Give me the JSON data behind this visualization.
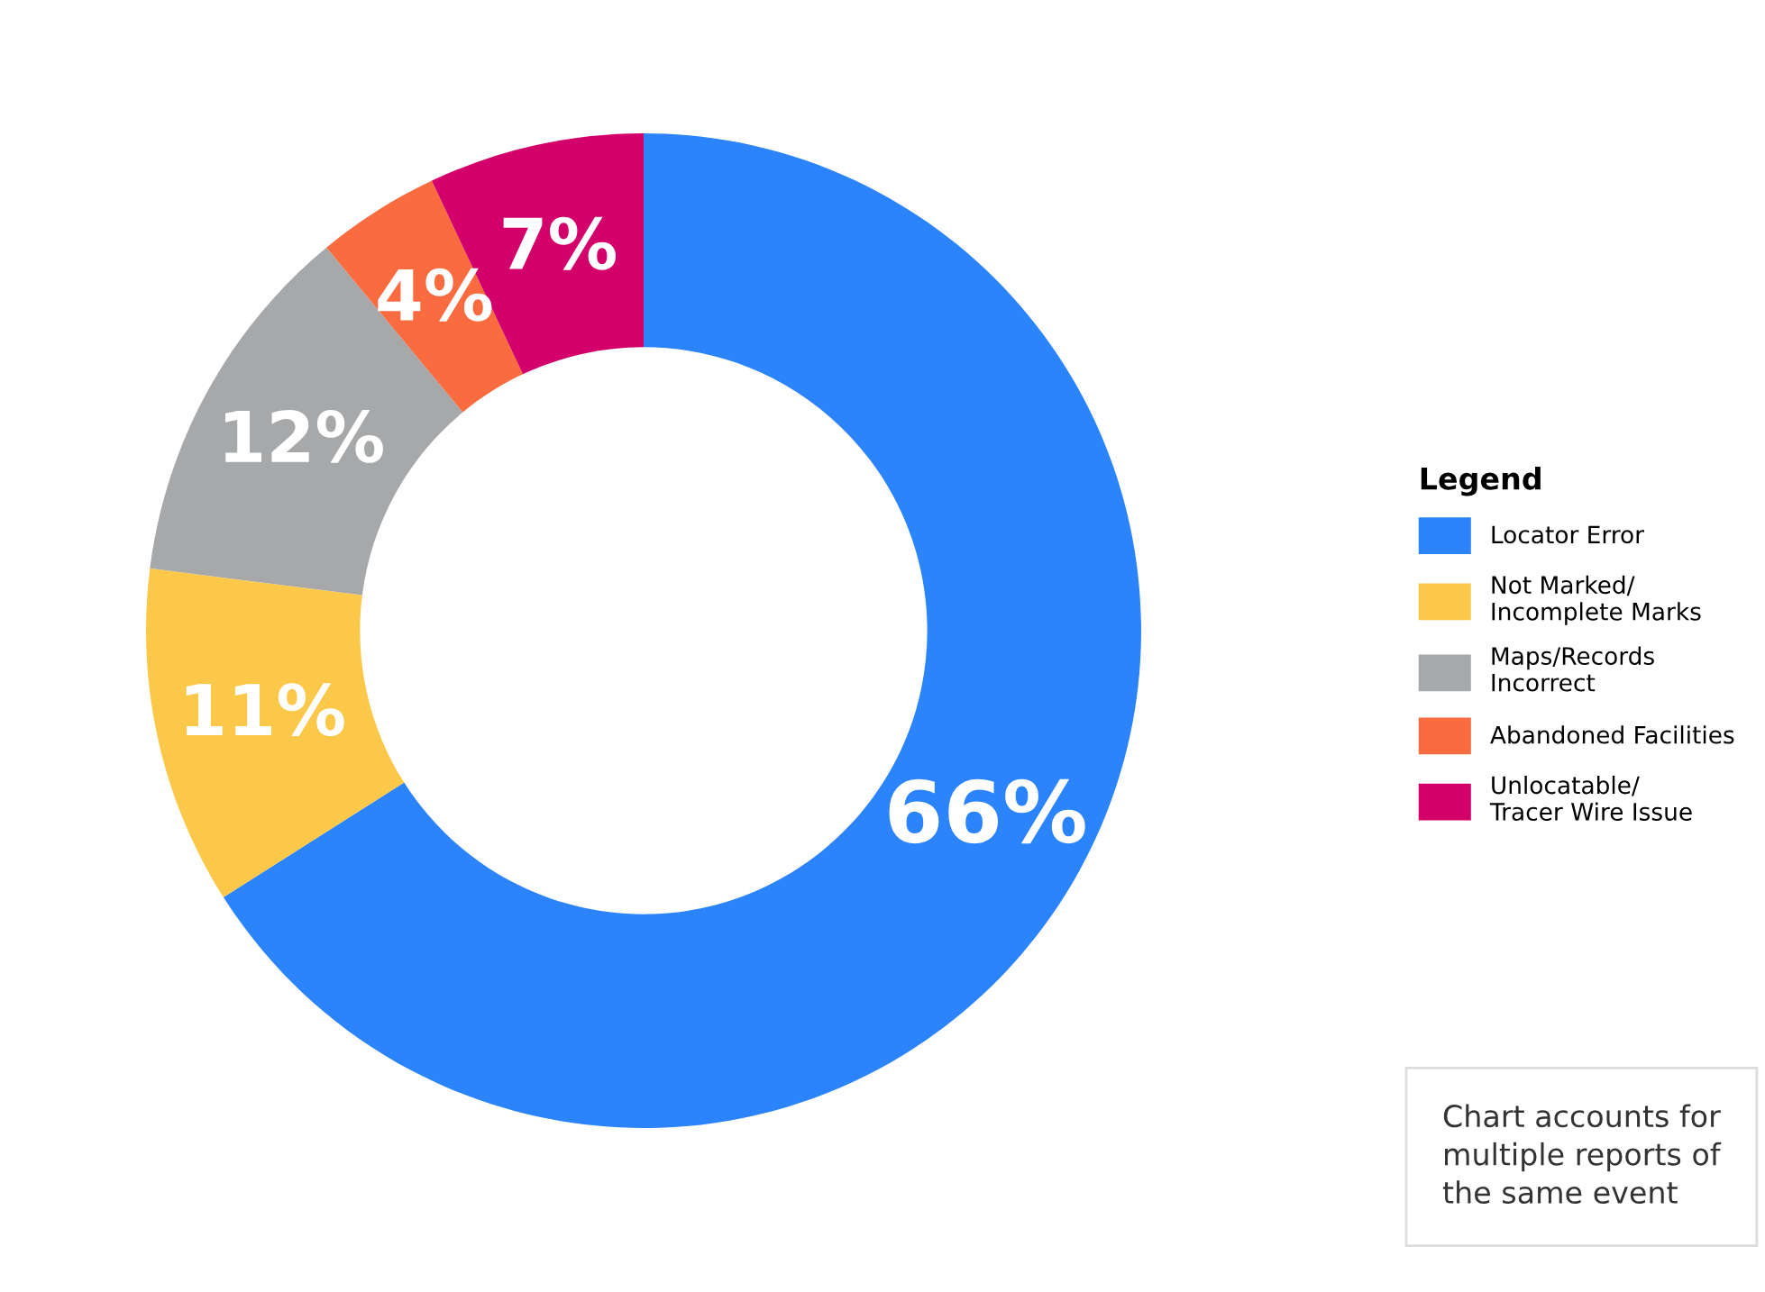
{
  "chart_data": {
    "type": "donut",
    "categories": [
      "Locator Error",
      "Not Marked/\nIncomplete Marks",
      "Maps/Records\nIncorrect",
      "Abandoned Facilities",
      "Unlocatable/\nTracer Wire Issue"
    ],
    "values": [
      66,
      11,
      12,
      4,
      7
    ],
    "colors": [
      "#2b84fb",
      "#fcc84a",
      "#a7a8aa",
      "#fb6b40",
      "#d3006b"
    ],
    "value_labels": [
      "66%",
      "11%",
      "12%",
      "4%",
      "7%"
    ],
    "legend_title": "Legend",
    "legend": "right",
    "annotations": [
      "Chart accounts for\nmultiple reports of\nthe same event"
    ]
  }
}
